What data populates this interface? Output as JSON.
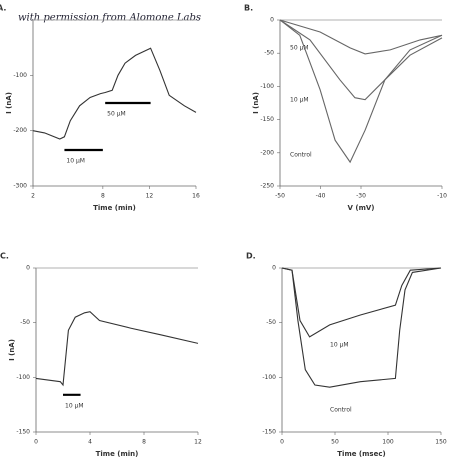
{
  "header": "with permission from Alomone Labs",
  "chart_data": [
    {
      "type": "line",
      "label": "A.",
      "xlabel": "Time (min)",
      "ylabel": "I (nA)",
      "xlim": [
        2,
        16
      ],
      "xticks": [
        2,
        8,
        12,
        16
      ],
      "ylim": [
        -300,
        0
      ],
      "yticks": [
        -100,
        -200,
        -300
      ],
      "series": [
        {
          "color": "#333333",
          "x": [
            2,
            3.0,
            4.3,
            4.7,
            5.2,
            6.0,
            6.9,
            7.8,
            8.2,
            8.8,
            9.3,
            9.9,
            10.8,
            12.1,
            12.9,
            13.7,
            15.0,
            16
          ],
          "values": [
            -200,
            -204,
            -215,
            -211,
            -182,
            -155,
            -140,
            -133,
            -131,
            -127,
            -100,
            -78,
            -64,
            -51,
            -91,
            -136,
            -155,
            -167
          ]
        }
      ],
      "annotations": [
        {
          "text": "10 µM",
          "x0": 4.7,
          "x1": 8.0,
          "y": -235
        },
        {
          "text": "50 µM",
          "x0": 8.2,
          "x1": 12.1,
          "y": -150
        }
      ]
    },
    {
      "type": "line",
      "label": "B.",
      "xlabel": "V (mV)",
      "ylabel": "I (nA)",
      "xlim": [
        -50,
        -10
      ],
      "xticks": [
        -50,
        -40,
        -30,
        -10
      ],
      "ylim": [
        -250,
        0
      ],
      "yticks": [
        0,
        -50,
        -100,
        -150,
        -200,
        -250
      ],
      "series": [
        {
          "name": "50 µM",
          "color": "#666666",
          "x": [
            -50,
            -40.1,
            -32.7,
            -29.0,
            -22.8,
            -15.4,
            -10
          ],
          "values": [
            0,
            -18,
            -42,
            -51,
            -45,
            -30,
            -23
          ]
        },
        {
          "name": "10 µM",
          "color": "#666666",
          "x": [
            -50,
            -42.6,
            -35.2,
            -31.5,
            -29.0,
            -24.1,
            -17.9,
            -10
          ],
          "values": [
            0,
            -30,
            -90,
            -117,
            -120,
            -90,
            -53,
            -27
          ]
        },
        {
          "name": "Control",
          "color": "#666666",
          "x": [
            -50,
            -45.1,
            -40.1,
            -36.4,
            -32.7,
            -29.0,
            -24.1,
            -17.9,
            -10
          ],
          "values": [
            0,
            -23,
            -105,
            -181,
            -214,
            -166,
            -90,
            -45,
            -23
          ]
        }
      ]
    },
    {
      "type": "line",
      "label": "C.",
      "xlabel": "Time (min)",
      "ylabel": "I (nA)",
      "xlim": [
        0,
        12
      ],
      "xticks": [
        0,
        4,
        8,
        12
      ],
      "ylim": [
        -150,
        0
      ],
      "yticks": [
        0,
        -50,
        -100,
        -150
      ],
      "series": [
        {
          "color": "#333333",
          "x": [
            0,
            1.8,
            2.0,
            2.4,
            2.9,
            3.6,
            4.0,
            4.7,
            7.0,
            9.2,
            12
          ],
          "values": [
            -101,
            -104,
            -107,
            -57,
            -45,
            -41,
            -40,
            -48,
            -55,
            -61,
            -69
          ]
        }
      ],
      "annotations": [
        {
          "text": "10 µM",
          "x0": 2.0,
          "x1": 3.3,
          "y": -116
        }
      ]
    },
    {
      "type": "line",
      "label": "D.",
      "xlabel": "Time (msec)",
      "ylabel": "",
      "xlim": [
        0,
        150
      ],
      "xticks": [
        0,
        50,
        100,
        150
      ],
      "ylim": [
        -150,
        0
      ],
      "yticks": [
        0,
        -50,
        -100,
        -150
      ],
      "series": [
        {
          "name": "10 µM",
          "color": "#333333",
          "x": [
            0,
            9.4,
            17,
            26,
            45,
            74,
            107,
            113,
            121,
            150
          ],
          "values": [
            0,
            -2,
            -48,
            -63,
            -52,
            -43,
            -34,
            -16,
            -2,
            0
          ]
        },
        {
          "name": "Control",
          "color": "#333333",
          "x": [
            0,
            9.4,
            15,
            22,
            31,
            45,
            74,
            107,
            111,
            116,
            123,
            150
          ],
          "values": [
            0,
            -2,
            -48,
            -93,
            -107,
            -109,
            -104,
            -101,
            -57,
            -20,
            -4,
            0
          ]
        }
      ]
    }
  ]
}
